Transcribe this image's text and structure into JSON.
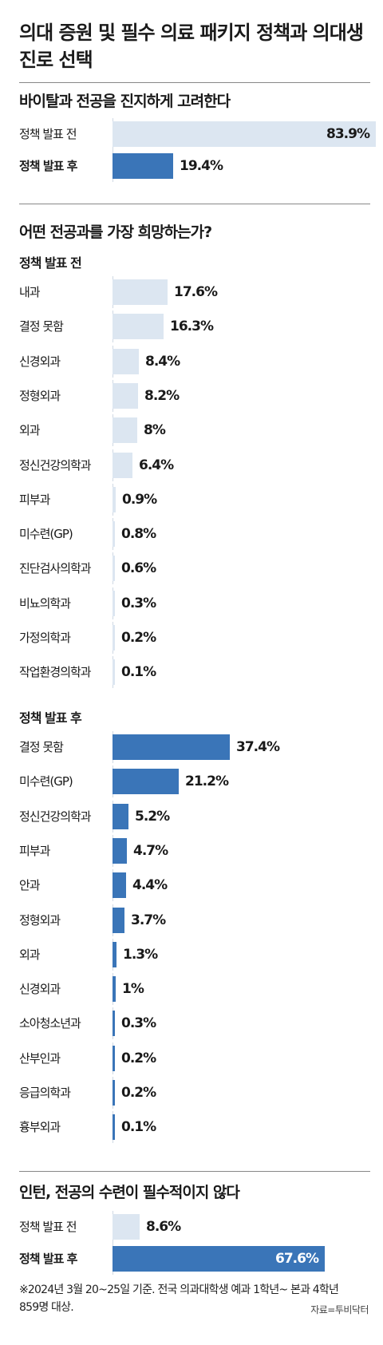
{
  "title": "의대 증원 및 필수 의료 패키지 정책과 의대생 진로 선택",
  "colors": {
    "before": "#dce6f1",
    "after": "#3a75b8",
    "rule": "#888888"
  },
  "chart_data": [
    {
      "type": "bar",
      "title": "바이탈과 전공을 진지하게 고려한다",
      "groups": [
        {
          "subtitle": "",
          "items": [
            {
              "label": "정책 발표 전",
              "value": 83.9,
              "display": "83.9%",
              "style": "before"
            },
            {
              "label": "정책 발표 후",
              "value": 19.4,
              "display": "19.4%",
              "style": "after"
            }
          ]
        }
      ]
    },
    {
      "type": "bar",
      "title": "어떤 전공과를 가장 희망하는가?",
      "groups": [
        {
          "subtitle": "정책 발표 전",
          "items": [
            {
              "label": "내과",
              "value": 17.6,
              "display": "17.6%",
              "style": "before"
            },
            {
              "label": "결정 못함",
              "value": 16.3,
              "display": "16.3%",
              "style": "before"
            },
            {
              "label": "신경외과",
              "value": 8.4,
              "display": "8.4%",
              "style": "before"
            },
            {
              "label": "정형외과",
              "value": 8.2,
              "display": "8.2%",
              "style": "before"
            },
            {
              "label": "외과",
              "value": 8,
              "display": "8%",
              "style": "before"
            },
            {
              "label": "정신건강의학과",
              "value": 6.4,
              "display": "6.4%",
              "style": "before"
            },
            {
              "label": "피부과",
              "value": 0.9,
              "display": "0.9%",
              "style": "before"
            },
            {
              "label": "미수련(GP)",
              "value": 0.8,
              "display": "0.8%",
              "style": "before"
            },
            {
              "label": "진단검사의학과",
              "value": 0.6,
              "display": "0.6%",
              "style": "before"
            },
            {
              "label": "비뇨의학과",
              "value": 0.3,
              "display": "0.3%",
              "style": "before"
            },
            {
              "label": "가정의학과",
              "value": 0.2,
              "display": "0.2%",
              "style": "before"
            },
            {
              "label": "작업환경의학과",
              "value": 0.1,
              "display": "0.1%",
              "style": "before"
            }
          ]
        },
        {
          "subtitle": "정책 발표 후",
          "items": [
            {
              "label": "결정 못함",
              "value": 37.4,
              "display": "37.4%",
              "style": "after"
            },
            {
              "label": "미수련(GP)",
              "value": 21.2,
              "display": "21.2%",
              "style": "after"
            },
            {
              "label": "정신건강의학과",
              "value": 5.2,
              "display": "5.2%",
              "style": "after"
            },
            {
              "label": "피부과",
              "value": 4.7,
              "display": "4.7%",
              "style": "after"
            },
            {
              "label": "안과",
              "value": 4.4,
              "display": "4.4%",
              "style": "after"
            },
            {
              "label": "정형외과",
              "value": 3.7,
              "display": "3.7%",
              "style": "after"
            },
            {
              "label": "외과",
              "value": 1.3,
              "display": "1.3%",
              "style": "after"
            },
            {
              "label": "신경외과",
              "value": 1,
              "display": "1%",
              "style": "after"
            },
            {
              "label": "소아청소년과",
              "value": 0.3,
              "display": "0.3%",
              "style": "after"
            },
            {
              "label": "산부인과",
              "value": 0.2,
              "display": "0.2%",
              "style": "after"
            },
            {
              "label": "응급의학과",
              "value": 0.2,
              "display": "0.2%",
              "style": "after"
            },
            {
              "label": "흉부외과",
              "value": 0.1,
              "display": "0.1%",
              "style": "after"
            }
          ]
        }
      ]
    },
    {
      "type": "bar",
      "title": "인턴, 전공의 수련이 필수적이지 않다",
      "groups": [
        {
          "subtitle": "",
          "items": [
            {
              "label": "정책 발표 전",
              "value": 8.6,
              "display": "8.6%",
              "style": "before"
            },
            {
              "label": "정책 발표 후",
              "value": 67.6,
              "display": "67.6%",
              "style": "after"
            }
          ]
        }
      ]
    }
  ],
  "footnote": "※2024년 3월 20~25일 기준. 전국 의과대학생 예과 1학년~ 본과 4학년 859명 대상.",
  "source": "자료=투비닥터"
}
